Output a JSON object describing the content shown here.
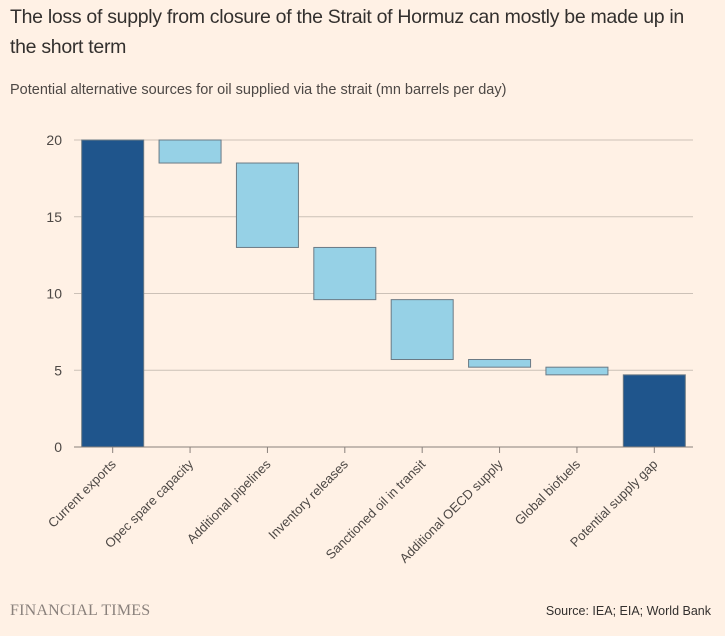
{
  "header": {
    "title": "The loss of supply from closure of the Strait of Hormuz can mostly be made up in the short term",
    "subtitle": "Potential alternative sources for oil supplied via the strait (mn barrels per day)"
  },
  "footer": {
    "logo": "FINANCIAL TIMES",
    "source": "Source: IEA; EIA; World Bank"
  },
  "colors": {
    "background": "#fff1e5",
    "total_bar": "#1f558c",
    "step_bar": "#96d1e6",
    "bar_stroke": "#6b7a85",
    "grid": "#ccc1b7",
    "axis": "#8a817c"
  },
  "chart_data": {
    "type": "bar",
    "subtype": "waterfall",
    "title": "The loss of supply from closure of the Strait of Hormuz can mostly be made up in the short term",
    "subtitle": "Potential alternative sources for oil supplied via the strait (mn barrels per day)",
    "xlabel": "",
    "ylabel": "mn barrels per day",
    "ylim": [
      0,
      20
    ],
    "yticks": [
      0,
      5,
      10,
      15,
      20
    ],
    "grid": true,
    "legend": "none",
    "categories": [
      "Current exports",
      "Opec spare capacity",
      "Additional pipelines",
      "Inventory releases",
      "Sanctioned oil in transit",
      "Additional OECD supply",
      "Global biofuels",
      "Potential supply gap"
    ],
    "bars": [
      {
        "label": "Current exports",
        "kind": "total",
        "start": 0,
        "end": 20,
        "value": 20
      },
      {
        "label": "Opec spare capacity",
        "kind": "decrease",
        "start": 20,
        "end": 18.5,
        "value": 1.5
      },
      {
        "label": "Additional pipelines",
        "kind": "decrease",
        "start": 18.5,
        "end": 13,
        "value": 5.5
      },
      {
        "label": "Inventory releases",
        "kind": "decrease",
        "start": 13,
        "end": 9.6,
        "value": 3.4
      },
      {
        "label": "Sanctioned oil in transit",
        "kind": "decrease",
        "start": 9.6,
        "end": 5.7,
        "value": 3.9
      },
      {
        "label": "Additional OECD supply",
        "kind": "decrease",
        "start": 5.7,
        "end": 5.2,
        "value": 0.5
      },
      {
        "label": "Global biofuels",
        "kind": "decrease",
        "start": 5.2,
        "end": 4.7,
        "value": 0.5
      },
      {
        "label": "Potential supply gap",
        "kind": "total",
        "start": 0,
        "end": 4.7,
        "value": 4.7
      }
    ]
  }
}
